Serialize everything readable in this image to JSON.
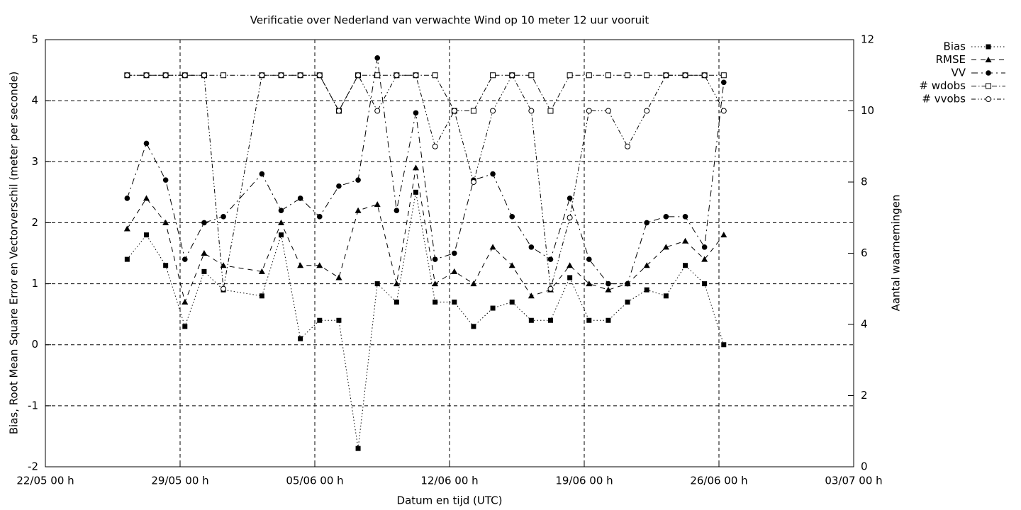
{
  "chart_data": {
    "type": "line",
    "title": "Verificatie over Nederland van verwachte Wind op 10 meter 12 uur vooruit",
    "xlabel": "Datum en tijd (UTC)",
    "ylabel": "Bias, Root Mean Square Error en Vectorverschil (meter per seconde)",
    "y2label": "Aantal waarnemingen",
    "x": [
      "26/05 06 h",
      "27/05 06 h",
      "28/05 06 h",
      "29/05 06 h",
      "30/05 06 h",
      "31/05 06 h",
      "02/06 06 h",
      "03/06 06 h",
      "04/06 06 h",
      "05/06 06 h",
      "06/06 06 h",
      "07/06 06 h",
      "08/06 06 h",
      "09/06 06 h",
      "10/06 06 h",
      "11/06 06 h",
      "12/06 06 h",
      "13/06 06 h",
      "14/06 06 h",
      "15/06 06 h",
      "16/06 06 h",
      "17/06 06 h",
      "18/06 06 h",
      "19/06 06 h",
      "20/06 06 h",
      "21/06 06 h",
      "22/06 06 h",
      "23/06 06 h",
      "24/06 06 h",
      "25/06 06 h",
      "26/06 06 h"
    ],
    "xlim": [
      "22/05 00 h",
      "03/07 00 h"
    ],
    "xticks": [
      "22/05 00 h",
      "29/05 00 h",
      "05/06 00 h",
      "12/06 00 h",
      "19/06 00 h",
      "26/06 00 h",
      "03/07 00 h"
    ],
    "ylim": [
      -2,
      5
    ],
    "yticks": [
      -2,
      -1,
      0,
      1,
      2,
      3,
      4,
      5
    ],
    "y2lim": [
      0,
      12
    ],
    "y2ticks": [
      0,
      2,
      4,
      6,
      8,
      10,
      12
    ],
    "grid": true,
    "legend": "top-right",
    "series": [
      {
        "name": "Bias",
        "color": "#000000",
        "values": [
          1.4,
          1.8,
          1.3,
          0.3,
          1.2,
          0.9,
          0.8,
          1.8,
          0.1,
          0.4,
          0.4,
          -1.7,
          1.0,
          0.7,
          2.5,
          0.7,
          0.7,
          0.3,
          0.6,
          0.7,
          0.4,
          0.4,
          1.1,
          0.4,
          0.4,
          0.7,
          0.9,
          0.8,
          1.3,
          1.0,
          0.0
        ]
      },
      {
        "name": "RMSE",
        "color": "#000000",
        "values": [
          1.9,
          2.4,
          2.0,
          0.7,
          1.5,
          1.3,
          1.2,
          2.0,
          1.3,
          1.3,
          1.1,
          2.2,
          2.3,
          1.0,
          2.9,
          1.0,
          1.2,
          1.0,
          1.6,
          1.3,
          0.8,
          0.9,
          1.3,
          1.0,
          0.9,
          1.0,
          1.3,
          1.6,
          1.7,
          1.4,
          1.8
        ]
      },
      {
        "name": "VV",
        "color": "#000000",
        "values": [
          2.4,
          3.3,
          2.7,
          1.4,
          2.0,
          2.1,
          2.8,
          2.2,
          2.4,
          2.1,
          2.6,
          2.7,
          4.7,
          2.2,
          3.8,
          1.4,
          1.5,
          2.7,
          2.8,
          2.1,
          1.6,
          1.4,
          2.4,
          1.4,
          1.0,
          1.0,
          2.0,
          2.1,
          2.1,
          1.6,
          4.3
        ]
      },
      {
        "name": "# wdobs",
        "color": "#000000",
        "axis": "y2",
        "values": [
          11,
          11,
          11,
          11,
          11,
          11,
          11,
          11,
          11,
          11,
          10,
          11,
          11,
          11,
          11,
          11,
          10,
          10,
          11,
          11,
          11,
          10,
          11,
          11,
          11,
          11,
          11,
          11,
          11,
          11,
          11
        ]
      },
      {
        "name": "# vvobs",
        "color": "#000000",
        "axis": "y2",
        "values": [
          11,
          11,
          11,
          11,
          11,
          5,
          11,
          11,
          11,
          11,
          10,
          11,
          10,
          11,
          11,
          9,
          10,
          8,
          10,
          11,
          10,
          5,
          7,
          10,
          10,
          9,
          10,
          11,
          11,
          11,
          10
        ]
      }
    ]
  }
}
